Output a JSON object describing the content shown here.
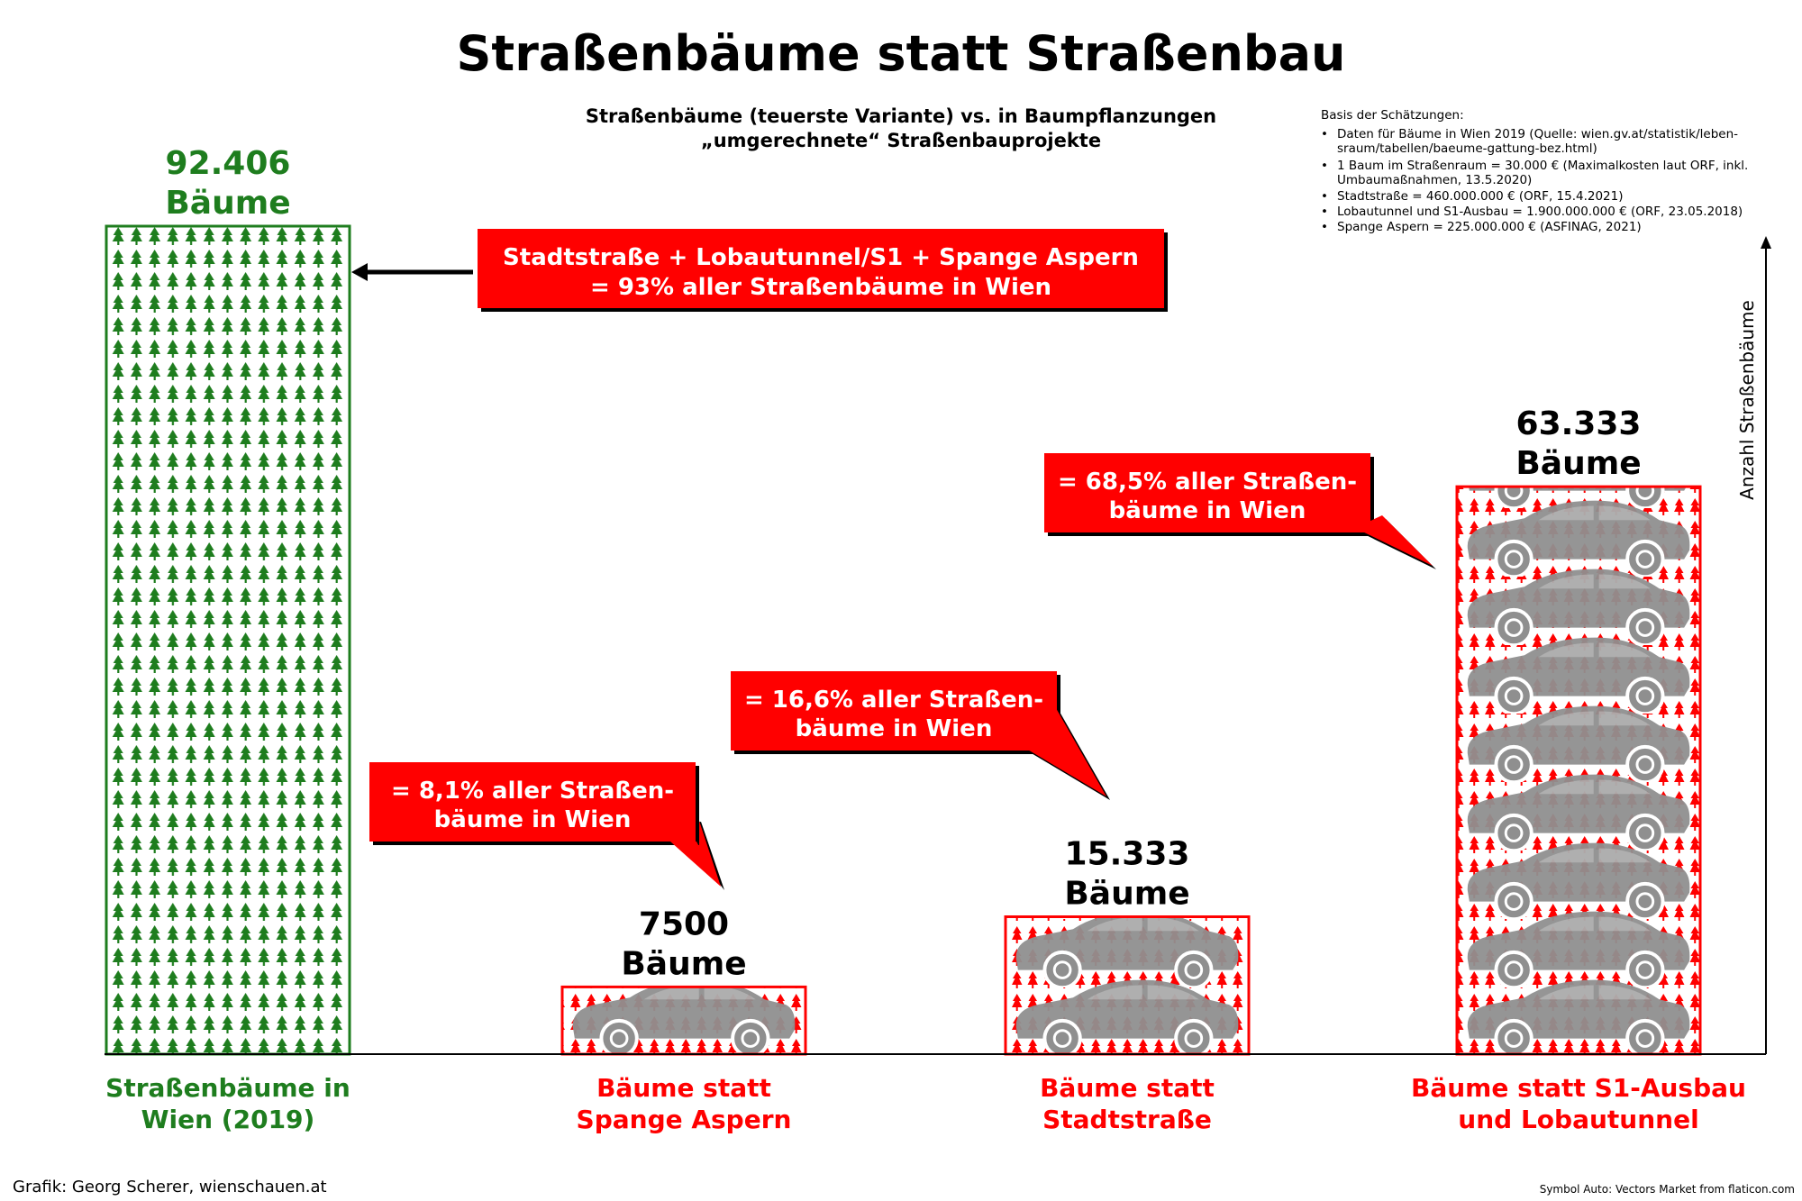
{
  "chart_data": {
    "type": "bar",
    "title": "Straßenbäume statt Straßenbau",
    "subtitle_line1": "Straßenbäume (teuerste Variante) vs. in Baumpflanzungen",
    "subtitle_line2": "„umgerechnete“ Straßenbauprojekte",
    "ylabel": "Anzahl Straßenbäume",
    "ylim": [
      0,
      100000
    ],
    "grid": false,
    "categories": [
      {
        "line1": "Straßenbäume in",
        "line2": "Wien (2019)"
      },
      {
        "line1": "Bäume statt",
        "line2": "Spange Aspern"
      },
      {
        "line1": "Bäume statt",
        "line2": "Stadtstraße"
      },
      {
        "line1": "Bäume statt S1-Ausbau",
        "line2": "und Lobautunnel"
      }
    ],
    "values": [
      92406,
      7500,
      15333,
      63333
    ],
    "value_labels": [
      {
        "line1": "92.406",
        "line2": "Bäume"
      },
      {
        "line1": "7500",
        "line2": "Bäume"
      },
      {
        "line1": "15.333",
        "line2": "Bäume"
      },
      {
        "line1": "63.333",
        "line2": "Bäume"
      }
    ],
    "callouts": [
      {
        "line1": "Stadtstraße + Lobautunnel/S1 + Spange Aspern",
        "line2": "= 93% aller Straßenbäume in Wien"
      },
      {
        "line1": "= 8,1% aller Straßen-",
        "line2": "bäume in Wien"
      },
      {
        "line1": "= 16,6% aller Straßen-",
        "line2": "bäume in Wien"
      },
      {
        "line1": "= 68,5% aller Straßen-",
        "line2": "bäume in Wien"
      }
    ],
    "colors": {
      "green": "#1e7d1e",
      "red": "#ff0000",
      "car": "#8f8f8f",
      "tree_dark": "#7a2020"
    }
  },
  "notes": {
    "heading": "Basis der Schätzungen:",
    "items": [
      {
        "line1": "Daten für Bäume in Wien 2019 (Quelle: wien.gv.at/statistik/leben-",
        "line2": "sraum/tabellen/baeume-gattung-bez.html)"
      },
      {
        "line1": "1 Baum im Straßenraum = 30.000 € (Maximalkosten laut ORF, inkl.",
        "line2": "Umbaumaßnahmen, 13.5.2020)"
      },
      {
        "line1": "Stadtstraße = 460.000.000 € (ORF, 15.4.2021)",
        "line2": ""
      },
      {
        "line1": "Lobautunnel und S1-Ausbau = 1.900.000.000 € (ORF, 23.05.2018)",
        "line2": ""
      },
      {
        "line1": "Spange Aspern = 225.000.000 € (ASFINAG, 2021)",
        "line2": ""
      }
    ]
  },
  "footer": {
    "credit": "Grafik: Georg Scherer, wienschauen.at",
    "symbol_credit": "Symbol Auto: Vectors Market from flaticon.com"
  }
}
